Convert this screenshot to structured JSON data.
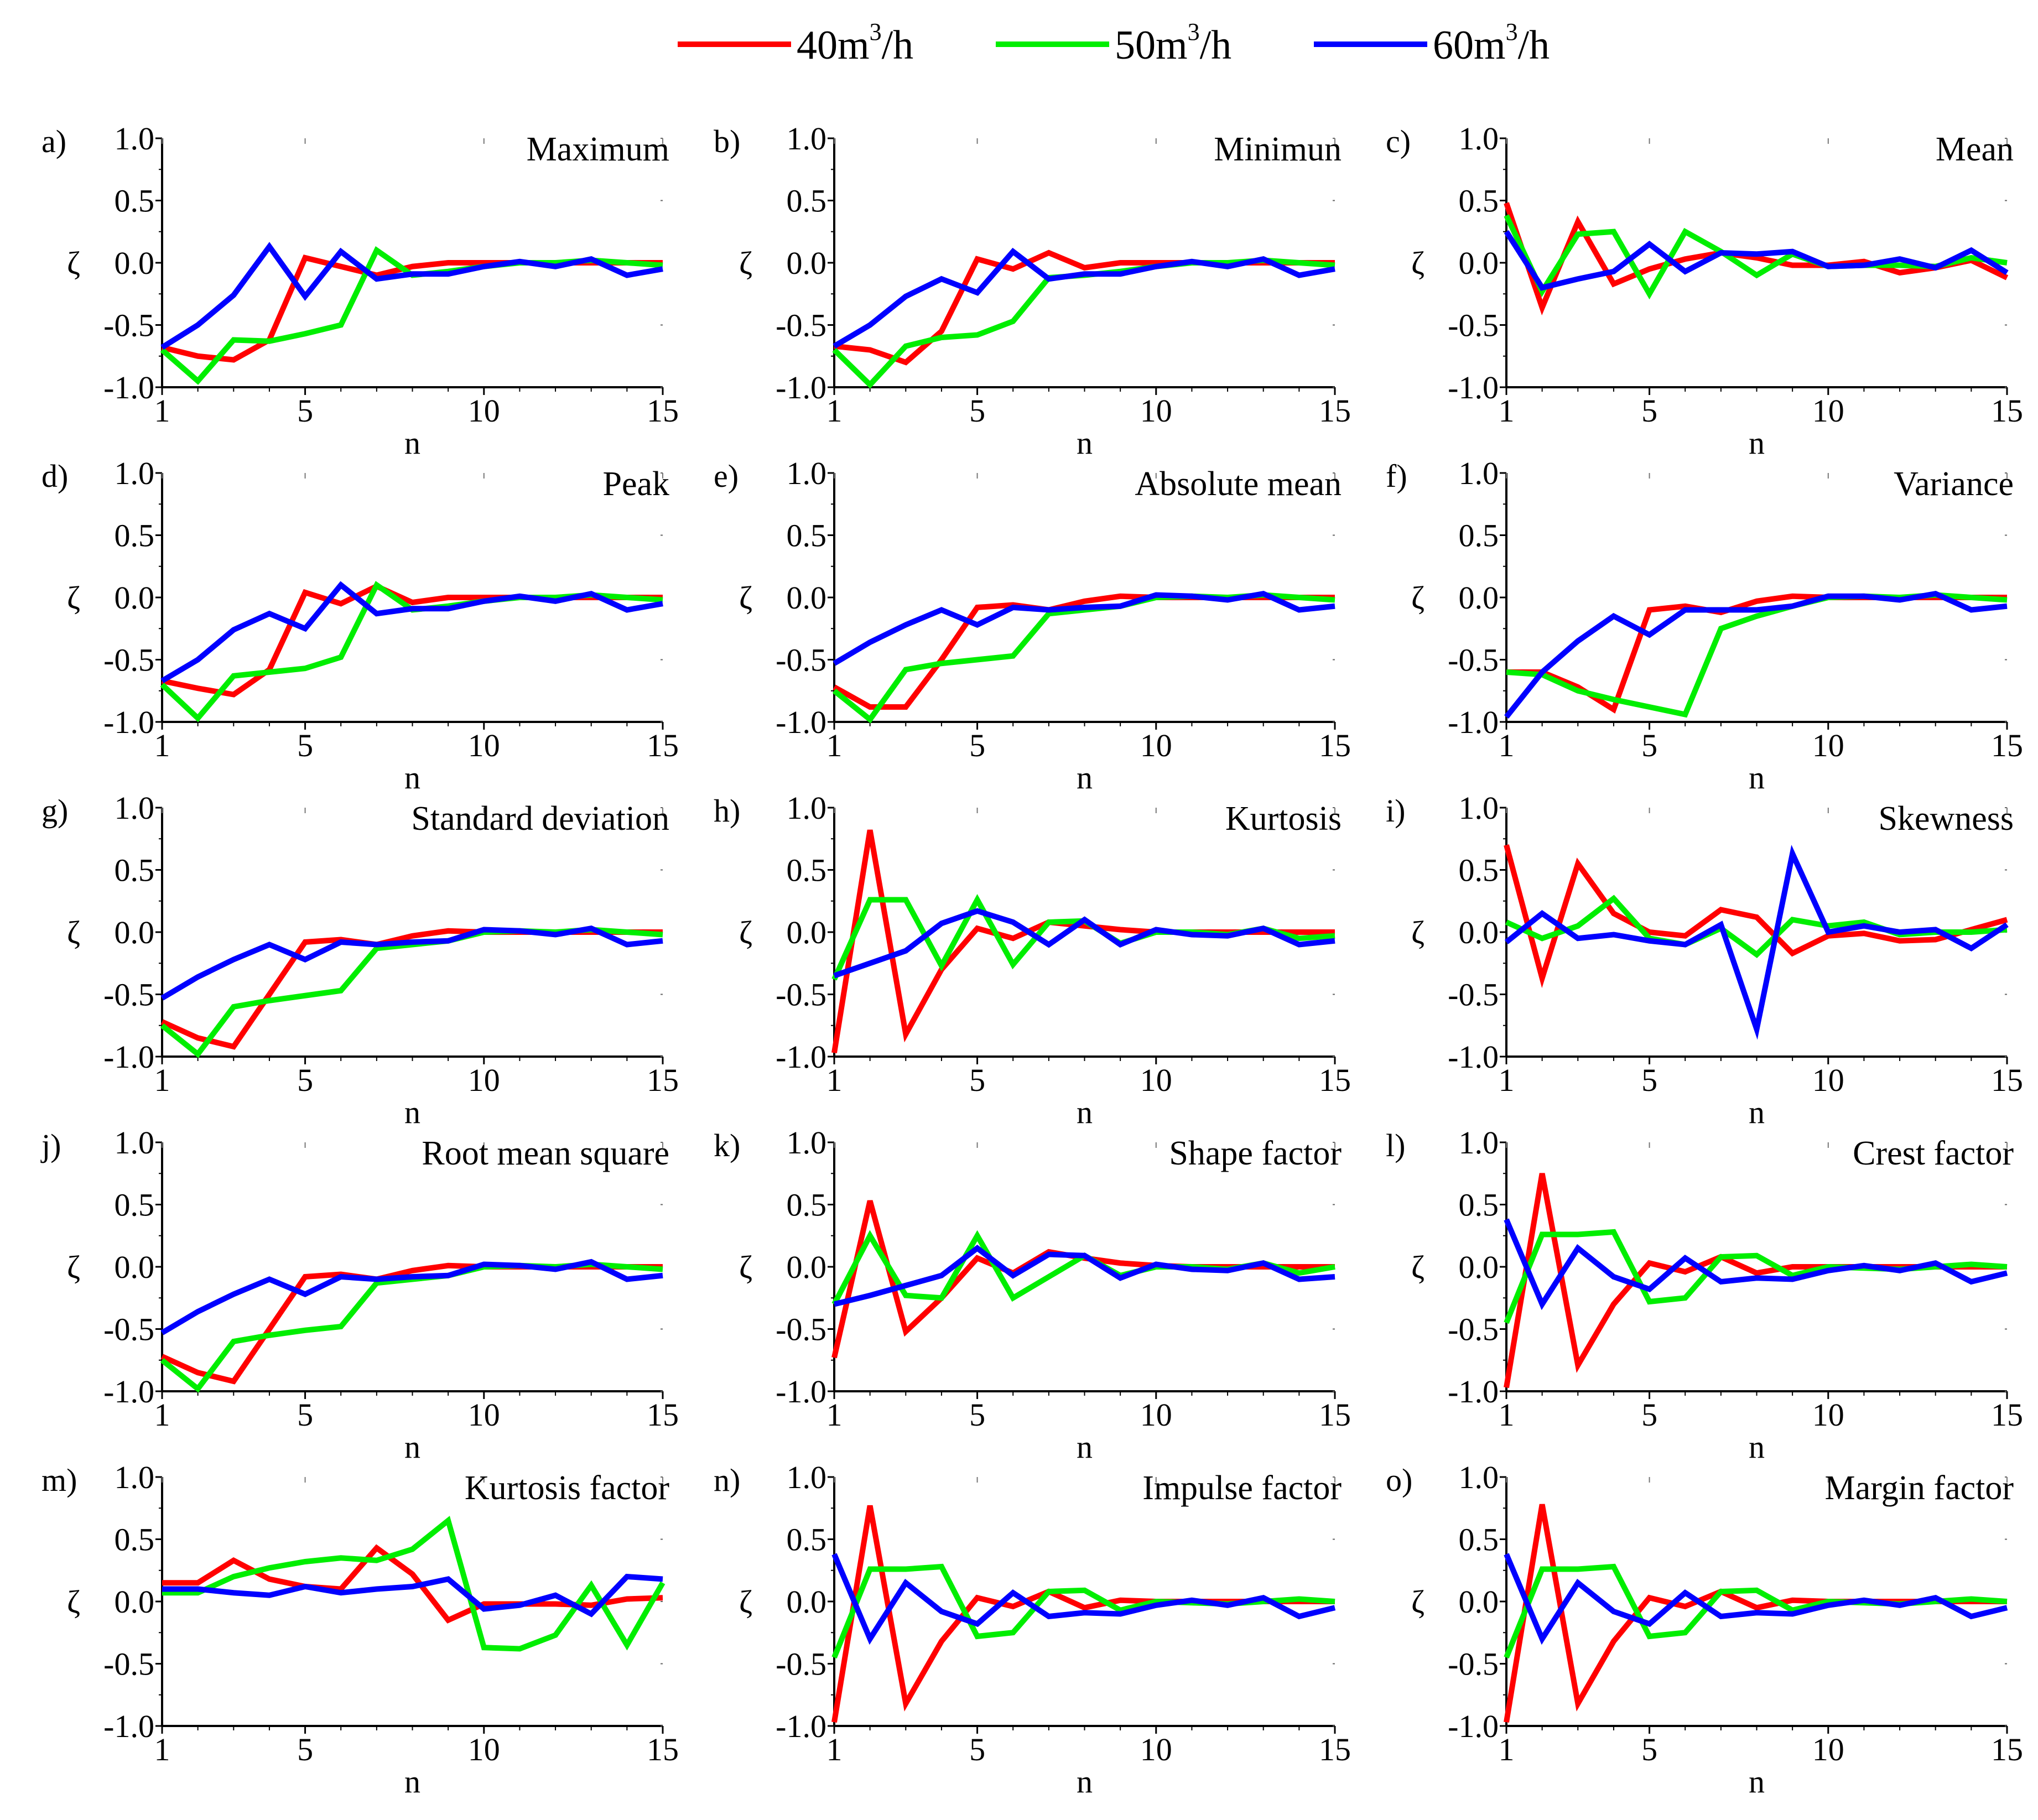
{
  "legend": [
    {
      "name": "40m",
      "sup": "3",
      "unit": "/h",
      "color": "#ff0000"
    },
    {
      "name": "50m",
      "sup": "3",
      "unit": "/h",
      "color": "#00ee00"
    },
    {
      "name": "60m",
      "sup": "3",
      "unit": "/h",
      "color": "#0000ff"
    }
  ],
  "axis": {
    "x_ticks": [
      1,
      5,
      10,
      15
    ],
    "y_ticks": [
      "1.0",
      "0.5",
      "0.0",
      "-0.5",
      "-1.0"
    ],
    "xlabel": "n",
    "ylabel": "ζ",
    "xlim": [
      1,
      15
    ],
    "ylim": [
      -1.0,
      1.0
    ]
  },
  "chart_data": [
    {
      "type": "line",
      "letter": "a)",
      "title": "Maximum",
      "x": [
        1,
        2,
        3,
        4,
        5,
        6,
        7,
        8,
        9,
        10,
        11,
        12,
        13,
        14,
        15
      ],
      "series": [
        {
          "values": [
            -0.68,
            -0.75,
            -0.78,
            -0.62,
            0.04,
            -0.03,
            -0.1,
            -0.03,
            0.0,
            0.0,
            0.0,
            0.0,
            0.0,
            0.0,
            0.0
          ]
        },
        {
          "values": [
            -0.7,
            -0.95,
            -0.62,
            -0.63,
            -0.57,
            -0.5,
            0.1,
            -0.1,
            -0.07,
            -0.03,
            0.0,
            0.0,
            0.02,
            0.0,
            -0.02
          ]
        },
        {
          "values": [
            -0.68,
            -0.5,
            -0.26,
            0.13,
            -0.27,
            0.09,
            -0.13,
            -0.09,
            -0.09,
            -0.03,
            0.01,
            -0.03,
            0.03,
            -0.1,
            -0.05
          ]
        }
      ]
    },
    {
      "type": "line",
      "letter": "b)",
      "title": "Minimun",
      "x": [
        1,
        2,
        3,
        4,
        5,
        6,
        7,
        8,
        9,
        10,
        11,
        12,
        13,
        14,
        15
      ],
      "series": [
        {
          "values": [
            -0.67,
            -0.7,
            -0.8,
            -0.55,
            0.03,
            -0.05,
            0.08,
            -0.04,
            0.0,
            0.0,
            0.0,
            0.0,
            0.0,
            0.0,
            0.0
          ]
        },
        {
          "values": [
            -0.7,
            -0.98,
            -0.67,
            -0.6,
            -0.58,
            -0.47,
            -0.12,
            -0.1,
            -0.07,
            -0.03,
            0.0,
            0.0,
            0.02,
            0.0,
            -0.02
          ]
        },
        {
          "values": [
            -0.67,
            -0.5,
            -0.27,
            -0.13,
            -0.24,
            0.09,
            -0.13,
            -0.09,
            -0.09,
            -0.03,
            0.01,
            -0.03,
            0.03,
            -0.1,
            -0.05
          ]
        }
      ]
    },
    {
      "type": "line",
      "letter": "c)",
      "title": "Mean",
      "x": [
        1,
        2,
        3,
        4,
        5,
        6,
        7,
        8,
        9,
        10,
        11,
        12,
        13,
        14,
        15
      ],
      "series": [
        {
          "values": [
            0.48,
            -0.36,
            0.33,
            -0.17,
            -0.05,
            0.03,
            0.08,
            0.04,
            -0.02,
            -0.02,
            0.01,
            -0.08,
            -0.04,
            0.02,
            -0.12
          ]
        },
        {
          "values": [
            0.38,
            -0.23,
            0.23,
            0.25,
            -0.25,
            0.25,
            0.09,
            -0.1,
            0.07,
            -0.03,
            -0.02,
            -0.02,
            -0.03,
            0.04,
            0.0
          ]
        },
        {
          "values": [
            0.25,
            -0.2,
            -0.13,
            -0.07,
            0.15,
            -0.07,
            0.08,
            0.07,
            0.09,
            -0.03,
            -0.02,
            0.03,
            -0.04,
            0.1,
            -0.08
          ]
        }
      ]
    },
    {
      "type": "line",
      "letter": "d)",
      "title": "Peak",
      "x": [
        1,
        2,
        3,
        4,
        5,
        6,
        7,
        8,
        9,
        10,
        11,
        12,
        13,
        14,
        15
      ],
      "series": [
        {
          "values": [
            -0.67,
            -0.73,
            -0.78,
            -0.58,
            0.04,
            -0.05,
            0.09,
            -0.04,
            0.0,
            0.0,
            0.0,
            0.0,
            0.0,
            0.0,
            0.0
          ]
        },
        {
          "values": [
            -0.7,
            -0.97,
            -0.63,
            -0.6,
            -0.57,
            -0.48,
            0.1,
            -0.1,
            -0.07,
            -0.03,
            0.0,
            0.0,
            0.02,
            0.0,
            -0.02
          ]
        },
        {
          "values": [
            -0.67,
            -0.5,
            -0.26,
            -0.13,
            -0.25,
            0.1,
            -0.13,
            -0.09,
            -0.09,
            -0.03,
            0.01,
            -0.03,
            0.03,
            -0.1,
            -0.05
          ]
        }
      ]
    },
    {
      "type": "line",
      "letter": "e)",
      "title": "Absolute mean",
      "x": [
        1,
        2,
        3,
        4,
        5,
        6,
        7,
        8,
        9,
        10,
        11,
        12,
        13,
        14,
        15
      ],
      "series": [
        {
          "values": [
            -0.72,
            -0.88,
            -0.88,
            -0.5,
            -0.08,
            -0.06,
            -0.1,
            -0.03,
            0.01,
            0.0,
            0.0,
            0.0,
            0.0,
            0.0,
            0.0
          ]
        },
        {
          "values": [
            -0.75,
            -0.98,
            -0.58,
            -0.53,
            -0.5,
            -0.47,
            -0.13,
            -0.1,
            -0.07,
            0.0,
            0.01,
            0.0,
            0.02,
            0.0,
            -0.02
          ]
        },
        {
          "values": [
            -0.53,
            -0.36,
            -0.22,
            -0.1,
            -0.22,
            -0.08,
            -0.1,
            -0.08,
            -0.07,
            0.02,
            0.01,
            -0.02,
            0.03,
            -0.1,
            -0.07
          ]
        }
      ]
    },
    {
      "type": "line",
      "letter": "f)",
      "title": "Variance",
      "x": [
        1,
        2,
        3,
        4,
        5,
        6,
        7,
        8,
        9,
        10,
        11,
        12,
        13,
        14,
        15
      ],
      "series": [
        {
          "values": [
            -0.6,
            -0.6,
            -0.72,
            -0.9,
            -0.1,
            -0.07,
            -0.12,
            -0.03,
            0.01,
            0.0,
            0.0,
            0.0,
            0.0,
            0.0,
            0.0
          ]
        },
        {
          "values": [
            -0.6,
            -0.62,
            -0.75,
            -0.82,
            -0.88,
            -0.94,
            -0.25,
            -0.15,
            -0.07,
            0.0,
            0.01,
            0.0,
            0.02,
            0.0,
            -0.02
          ]
        },
        {
          "values": [
            -0.96,
            -0.6,
            -0.35,
            -0.15,
            -0.3,
            -0.1,
            -0.1,
            -0.1,
            -0.07,
            0.01,
            0.01,
            -0.02,
            0.03,
            -0.1,
            -0.07
          ]
        }
      ]
    },
    {
      "type": "line",
      "letter": "g)",
      "title": "Standard deviation",
      "x": [
        1,
        2,
        3,
        4,
        5,
        6,
        7,
        8,
        9,
        10,
        11,
        12,
        13,
        14,
        15
      ],
      "series": [
        {
          "values": [
            -0.72,
            -0.85,
            -0.92,
            -0.5,
            -0.08,
            -0.06,
            -0.1,
            -0.03,
            0.01,
            0.0,
            0.0,
            0.0,
            0.0,
            0.0,
            0.0
          ]
        },
        {
          "values": [
            -0.75,
            -0.98,
            -0.6,
            -0.55,
            -0.51,
            -0.47,
            -0.13,
            -0.1,
            -0.07,
            0.0,
            0.01,
            0.0,
            0.02,
            0.0,
            -0.02
          ]
        },
        {
          "values": [
            -0.53,
            -0.36,
            -0.22,
            -0.1,
            -0.22,
            -0.08,
            -0.1,
            -0.08,
            -0.07,
            0.02,
            0.01,
            -0.02,
            0.03,
            -0.1,
            -0.07
          ]
        }
      ]
    },
    {
      "type": "line",
      "letter": "h)",
      "title": "Kurtosis",
      "x": [
        1,
        2,
        3,
        4,
        5,
        6,
        7,
        8,
        9,
        10,
        11,
        12,
        13,
        14,
        15
      ],
      "series": [
        {
          "values": [
            -0.97,
            0.82,
            -0.82,
            -0.3,
            0.03,
            -0.05,
            0.08,
            0.05,
            0.02,
            0.0,
            0.0,
            0.0,
            0.0,
            0.0,
            0.0
          ]
        },
        {
          "values": [
            -0.38,
            0.26,
            0.26,
            -0.27,
            0.26,
            -0.26,
            0.08,
            0.09,
            -0.09,
            0.0,
            0.0,
            -0.02,
            0.03,
            -0.05,
            -0.03
          ]
        },
        {
          "values": [
            -0.35,
            -0.25,
            -0.15,
            0.07,
            0.17,
            0.08,
            -0.1,
            0.1,
            -0.1,
            0.02,
            -0.02,
            -0.03,
            0.03,
            -0.1,
            -0.07
          ]
        }
      ]
    },
    {
      "type": "line",
      "letter": "i)",
      "title": "Skewness",
      "x": [
        1,
        2,
        3,
        4,
        5,
        6,
        7,
        8,
        9,
        10,
        11,
        12,
        13,
        14,
        15
      ],
      "series": [
        {
          "values": [
            0.7,
            -0.37,
            0.55,
            0.15,
            0.0,
            -0.03,
            0.18,
            0.12,
            -0.17,
            -0.03,
            -0.01,
            -0.07,
            -0.06,
            0.02,
            0.1
          ]
        },
        {
          "values": [
            0.08,
            -0.05,
            0.05,
            0.27,
            -0.05,
            -0.1,
            0.03,
            -0.18,
            0.1,
            0.05,
            0.08,
            -0.02,
            0.0,
            0.0,
            0.02
          ]
        },
        {
          "values": [
            -0.08,
            0.15,
            -0.05,
            -0.02,
            -0.07,
            -0.1,
            0.06,
            -0.78,
            0.63,
            0.0,
            0.05,
            0.0,
            0.02,
            -0.13,
            0.06
          ]
        }
      ]
    },
    {
      "type": "line",
      "letter": "j)",
      "title": "Root mean square",
      "x": [
        1,
        2,
        3,
        4,
        5,
        6,
        7,
        8,
        9,
        10,
        11,
        12,
        13,
        14,
        15
      ],
      "series": [
        {
          "values": [
            -0.72,
            -0.85,
            -0.92,
            -0.5,
            -0.08,
            -0.06,
            -0.1,
            -0.03,
            0.01,
            0.0,
            0.0,
            0.0,
            0.0,
            0.0,
            0.0
          ]
        },
        {
          "values": [
            -0.75,
            -0.98,
            -0.6,
            -0.55,
            -0.51,
            -0.48,
            -0.13,
            -0.1,
            -0.07,
            0.0,
            0.01,
            0.0,
            0.02,
            0.0,
            -0.02
          ]
        },
        {
          "values": [
            -0.53,
            -0.36,
            -0.22,
            -0.1,
            -0.22,
            -0.08,
            -0.1,
            -0.08,
            -0.07,
            0.02,
            0.01,
            -0.02,
            0.04,
            -0.1,
            -0.07
          ]
        }
      ]
    },
    {
      "type": "line",
      "letter": "k)",
      "title": "Shape factor",
      "x": [
        1,
        2,
        3,
        4,
        5,
        6,
        7,
        8,
        9,
        10,
        11,
        12,
        13,
        14,
        15
      ],
      "series": [
        {
          "values": [
            -0.73,
            0.53,
            -0.52,
            -0.25,
            0.07,
            -0.05,
            0.12,
            0.07,
            0.03,
            0.01,
            0.0,
            0.0,
            0.0,
            0.0,
            0.0
          ]
        },
        {
          "values": [
            -0.3,
            0.25,
            -0.23,
            -0.25,
            0.25,
            -0.25,
            -0.08,
            0.09,
            -0.07,
            0.0,
            0.0,
            -0.02,
            0.03,
            -0.05,
            0.0
          ]
        },
        {
          "values": [
            -0.3,
            -0.23,
            -0.15,
            -0.07,
            0.15,
            -0.07,
            0.1,
            0.09,
            -0.09,
            0.02,
            -0.02,
            -0.03,
            0.03,
            -0.1,
            -0.08
          ]
        }
      ]
    },
    {
      "type": "line",
      "letter": "l)",
      "title": "Crest factor",
      "x": [
        1,
        2,
        3,
        4,
        5,
        6,
        7,
        8,
        9,
        10,
        11,
        12,
        13,
        14,
        15
      ],
      "series": [
        {
          "values": [
            -0.97,
            0.75,
            -0.79,
            -0.3,
            0.03,
            -0.04,
            0.08,
            -0.05,
            0.0,
            0.0,
            0.0,
            0.0,
            0.0,
            0.0,
            0.0
          ]
        },
        {
          "values": [
            -0.45,
            0.26,
            0.26,
            0.28,
            -0.28,
            -0.25,
            0.08,
            0.09,
            -0.07,
            0.0,
            -0.01,
            -0.02,
            0.0,
            0.02,
            0.0
          ]
        },
        {
          "values": [
            0.38,
            -0.3,
            0.15,
            -0.08,
            -0.18,
            0.07,
            -0.12,
            -0.09,
            -0.1,
            -0.03,
            0.01,
            -0.03,
            0.03,
            -0.12,
            -0.05
          ]
        }
      ]
    },
    {
      "type": "line",
      "letter": "m)",
      "title": "Kurtosis factor",
      "x": [
        1,
        2,
        3,
        4,
        5,
        6,
        7,
        8,
        9,
        10,
        11,
        12,
        13,
        14,
        15
      ],
      "series": [
        {
          "values": [
            0.15,
            0.15,
            0.33,
            0.18,
            0.12,
            0.1,
            0.43,
            0.22,
            -0.15,
            -0.02,
            -0.02,
            -0.02,
            -0.03,
            0.02,
            0.03
          ]
        },
        {
          "values": [
            0.07,
            0.07,
            0.2,
            0.27,
            0.32,
            0.35,
            0.33,
            0.42,
            0.65,
            -0.37,
            -0.38,
            -0.27,
            0.13,
            -0.35,
            0.15
          ]
        },
        {
          "values": [
            0.1,
            0.1,
            0.07,
            0.05,
            0.12,
            0.07,
            0.1,
            0.12,
            0.18,
            -0.06,
            -0.03,
            0.05,
            -0.1,
            0.2,
            0.18
          ]
        }
      ]
    },
    {
      "type": "line",
      "letter": "n)",
      "title": "Impulse factor",
      "x": [
        1,
        2,
        3,
        4,
        5,
        6,
        7,
        8,
        9,
        10,
        11,
        12,
        13,
        14,
        15
      ],
      "series": [
        {
          "values": [
            -0.97,
            0.77,
            -0.82,
            -0.32,
            0.03,
            -0.04,
            0.08,
            -0.05,
            0.01,
            0.0,
            0.0,
            0.0,
            0.0,
            0.0,
            0.0
          ]
        },
        {
          "values": [
            -0.45,
            0.26,
            0.26,
            0.28,
            -0.28,
            -0.25,
            0.08,
            0.09,
            -0.07,
            0.0,
            -0.01,
            -0.02,
            0.0,
            0.02,
            0.0
          ]
        },
        {
          "values": [
            0.38,
            -0.3,
            0.15,
            -0.08,
            -0.18,
            0.07,
            -0.12,
            -0.09,
            -0.1,
            -0.03,
            0.01,
            -0.03,
            0.03,
            -0.12,
            -0.05
          ]
        }
      ]
    },
    {
      "type": "line",
      "letter": "o)",
      "title": "Margin factor",
      "x": [
        1,
        2,
        3,
        4,
        5,
        6,
        7,
        8,
        9,
        10,
        11,
        12,
        13,
        14,
        15
      ],
      "series": [
        {
          "values": [
            -0.97,
            0.78,
            -0.82,
            -0.32,
            0.03,
            -0.04,
            0.08,
            -0.05,
            0.01,
            0.0,
            0.0,
            0.0,
            0.0,
            0.0,
            0.0
          ]
        },
        {
          "values": [
            -0.45,
            0.26,
            0.26,
            0.28,
            -0.28,
            -0.25,
            0.08,
            0.09,
            -0.07,
            0.0,
            -0.01,
            -0.02,
            0.0,
            0.02,
            0.0
          ]
        },
        {
          "values": [
            0.38,
            -0.3,
            0.15,
            -0.08,
            -0.18,
            0.07,
            -0.12,
            -0.09,
            -0.1,
            -0.03,
            0.01,
            -0.03,
            0.03,
            -0.12,
            -0.05
          ]
        }
      ]
    }
  ]
}
